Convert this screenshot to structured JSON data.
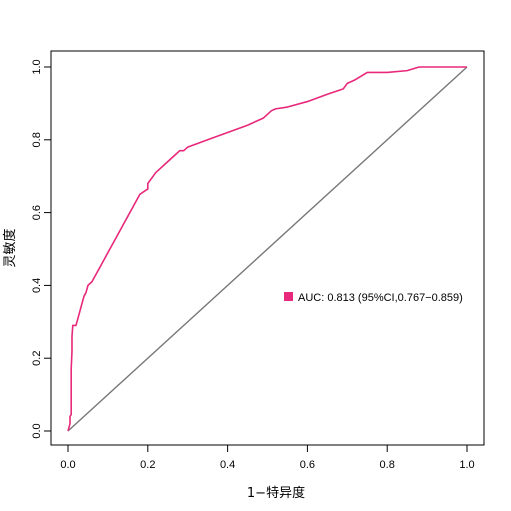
{
  "chart_data": {
    "type": "line",
    "xlabel": "1−特异度",
    "ylabel": "灵敏度",
    "xlim": [
      0,
      1
    ],
    "ylim": [
      0,
      1
    ],
    "x_ticks": [
      0.0,
      0.2,
      0.4,
      0.6,
      0.8,
      1.0
    ],
    "y_ticks": [
      0.0,
      0.2,
      0.4,
      0.6,
      0.8,
      1.0
    ],
    "x_tick_labels": [
      "0.0",
      "0.2",
      "0.4",
      "0.6",
      "0.8",
      "1.0"
    ],
    "y_tick_labels": [
      "0.0",
      "0.2",
      "0.4",
      "0.6",
      "0.8",
      "1.0"
    ],
    "grid": false,
    "legend_position": "right",
    "series": [
      {
        "name": "AUC: 0.813 (95%CI,0.767−0.859)",
        "color": "#e8287a",
        "x": [
          0.0,
          0.005,
          0.005,
          0.008,
          0.008,
          0.01,
          0.01,
          0.012,
          0.015,
          0.02,
          0.025,
          0.03,
          0.035,
          0.04,
          0.045,
          0.05,
          0.06,
          0.08,
          0.1,
          0.12,
          0.14,
          0.16,
          0.18,
          0.2,
          0.2,
          0.22,
          0.25,
          0.27,
          0.28,
          0.29,
          0.3,
          0.35,
          0.4,
          0.45,
          0.49,
          0.5,
          0.51,
          0.52,
          0.55,
          0.6,
          0.65,
          0.69,
          0.7,
          0.72,
          0.75,
          0.8,
          0.85,
          0.88,
          0.9,
          0.95,
          1.0
        ],
        "y": [
          0.0,
          0.02,
          0.04,
          0.045,
          0.17,
          0.22,
          0.26,
          0.29,
          0.29,
          0.29,
          0.31,
          0.33,
          0.35,
          0.37,
          0.38,
          0.4,
          0.41,
          0.45,
          0.49,
          0.53,
          0.57,
          0.61,
          0.65,
          0.665,
          0.68,
          0.71,
          0.74,
          0.76,
          0.77,
          0.77,
          0.78,
          0.8,
          0.82,
          0.84,
          0.86,
          0.87,
          0.88,
          0.885,
          0.89,
          0.905,
          0.925,
          0.94,
          0.955,
          0.965,
          0.985,
          0.985,
          0.99,
          1.0,
          1.0,
          1.0,
          1.0
        ]
      },
      {
        "name": "",
        "color": "#777777",
        "x": [
          0.0,
          1.0
        ],
        "y": [
          0.0,
          1.0
        ]
      }
    ]
  }
}
